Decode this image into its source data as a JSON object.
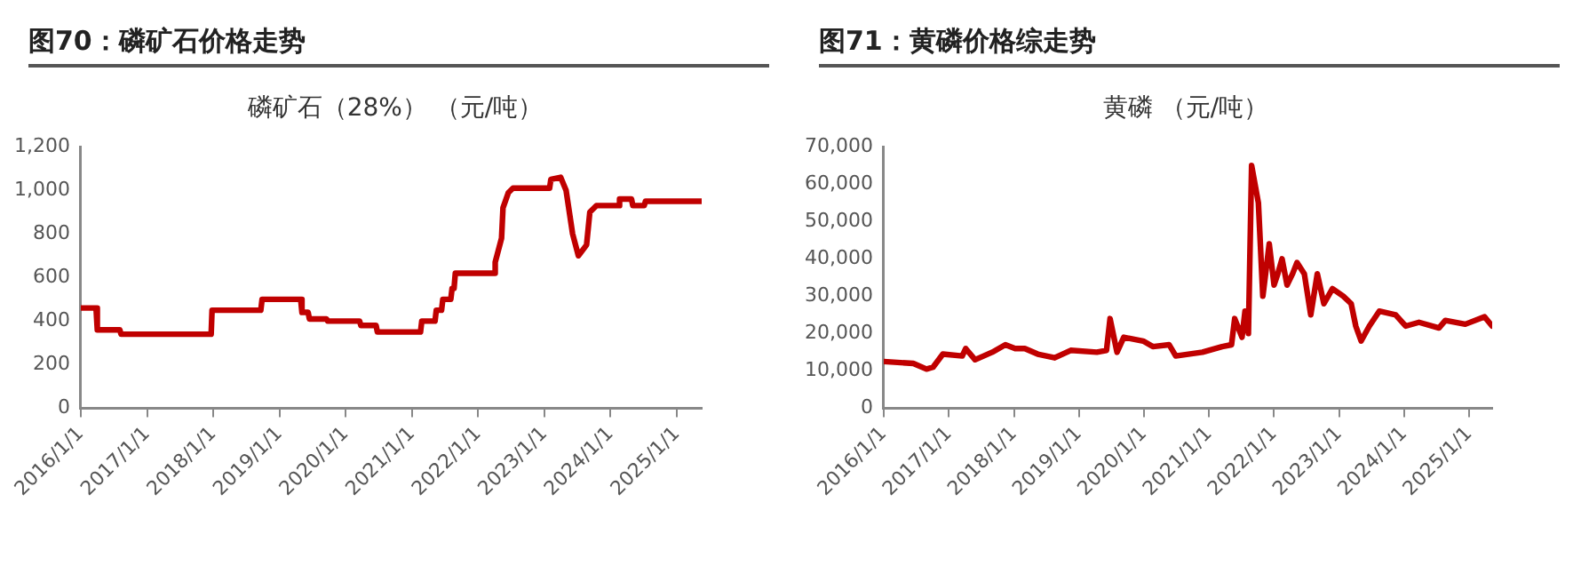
{
  "chart_data": [
    {
      "type": "line",
      "title": "图70：磷矿石价格走势",
      "subtitle": "磷矿石（28%） （元/吨）",
      "legend": false,
      "grid": false,
      "marker": "none",
      "line_style": "solid",
      "xlim": [
        "2016-01-01",
        "2025-05-18"
      ],
      "xticks": [
        {
          "value": "2016-01-01",
          "label": "2016/1/1"
        },
        {
          "value": "2017-01-01",
          "label": "2017/1/1"
        },
        {
          "value": "2018-01-01",
          "label": "2018/1/1"
        },
        {
          "value": "2019-01-01",
          "label": "2019/1/1"
        },
        {
          "value": "2020-01-01",
          "label": "2020/1/1"
        },
        {
          "value": "2021-01-01",
          "label": "2021/1/1"
        },
        {
          "value": "2022-01-01",
          "label": "2022/1/1"
        },
        {
          "value": "2023-01-01",
          "label": "2023/1/1"
        },
        {
          "value": "2024-01-01",
          "label": "2024/1/1"
        },
        {
          "value": "2025-01-01",
          "label": "2025/1/1"
        }
      ],
      "ylim": [
        0,
        1200
      ],
      "yticks": [
        0,
        {
          "value": 200,
          "label": "200"
        },
        {
          "value": 400,
          "label": "400"
        },
        {
          "value": 600,
          "label": "600"
        },
        {
          "value": 800,
          "label": "800"
        },
        {
          "value": 1000,
          "label": "1,000"
        },
        {
          "value": 1200,
          "label": "1,200"
        }
      ],
      "series": [
        {
          "color": "#c00000",
          "x": [
            "2016-01-01",
            "2016-03-25",
            "2016-04-01",
            "2016-08-03",
            "2016-08-10",
            "2017-12-20",
            "2017-12-25",
            "2018-09-20",
            "2018-09-27",
            "2019-04-28",
            "2019-05-05",
            "2019-06-08",
            "2019-06-15",
            "2019-09-17",
            "2019-09-24",
            "2020-03-18",
            "2020-03-25",
            "2020-06-17",
            "2020-06-24",
            "2021-02-17",
            "2021-02-24",
            "2021-05-08",
            "2021-05-15",
            "2021-06-13",
            "2021-06-20",
            "2021-08-03",
            "2021-08-10",
            "2021-08-21",
            "2021-08-28",
            "2022-03-29",
            "2022-04-05",
            "2022-05-10",
            "2022-05-18",
            "2022-06-17",
            "2022-07-12",
            "2023-01-30",
            "2023-02-06",
            "2023-04-01",
            "2023-05-01",
            "2023-06-06",
            "2023-07-08",
            "2023-08-22",
            "2023-09-09",
            "2023-10-15",
            "2024-02-13",
            "2024-02-20",
            "2024-04-26",
            "2024-05-03",
            "2024-07-05",
            "2024-07-12",
            "2025-05-18"
          ],
          "values": [
            460,
            460,
            360,
            360,
            340,
            340,
            450,
            450,
            500,
            500,
            440,
            440,
            410,
            410,
            400,
            400,
            380,
            380,
            350,
            350,
            400,
            400,
            450,
            450,
            500,
            500,
            550,
            550,
            620,
            620,
            670,
            780,
            920,
            990,
            1010,
            1010,
            1050,
            1060,
            1000,
            800,
            700,
            750,
            900,
            930,
            930,
            960,
            960,
            930,
            930,
            950,
            950
          ]
        }
      ]
    },
    {
      "type": "line",
      "title": "图71：黄磷价格综走势",
      "subtitle": "黄磷 （元/吨）",
      "legend": false,
      "grid": false,
      "marker": "none",
      "line_style": "solid",
      "xlim": [
        "2016-01-01",
        "2025-05-10"
      ],
      "xticks": [
        {
          "value": "2016-01-01",
          "label": "2016/1/1"
        },
        {
          "value": "2017-01-01",
          "label": "2017/1/1"
        },
        {
          "value": "2018-01-01",
          "label": "2018/1/1"
        },
        {
          "value": "2019-01-01",
          "label": "2019/1/1"
        },
        {
          "value": "2020-01-01",
          "label": "2020/1/1"
        },
        {
          "value": "2021-01-01",
          "label": "2021/1/1"
        },
        {
          "value": "2022-01-01",
          "label": "2022/1/1"
        },
        {
          "value": "2023-01-01",
          "label": "2023/1/1"
        },
        {
          "value": "2024-01-01",
          "label": "2024/1/1"
        },
        {
          "value": "2025-01-01",
          "label": "2025/1/1"
        }
      ],
      "ylim": [
        0,
        70000
      ],
      "yticks": [
        0,
        {
          "value": 10000,
          "label": "10,000"
        },
        {
          "value": 20000,
          "label": "20,000"
        },
        {
          "value": 30000,
          "label": "30,000"
        },
        {
          "value": 40000,
          "label": "40,000"
        },
        {
          "value": 50000,
          "label": "50,000"
        },
        {
          "value": 60000,
          "label": "60,000"
        },
        {
          "value": 70000,
          "label": "70,000"
        }
      ],
      "series": [
        {
          "color": "#c00000",
          "x": [
            "2016-01-01",
            "2016-06-15",
            "2016-08-28",
            "2016-10-04",
            "2016-11-28",
            "2017-03-17",
            "2017-04-05",
            "2017-05-28",
            "2017-09-01",
            "2017-11-14",
            "2018-01-08",
            "2018-03-03",
            "2018-05-15",
            "2018-08-18",
            "2018-11-16",
            "2019-04-12",
            "2019-06-05",
            "2019-06-25",
            "2019-08-03",
            "2019-09-10",
            "2019-12-28",
            "2020-02-20",
            "2020-05-22",
            "2020-06-28",
            "2020-11-25",
            "2021-03-15",
            "2021-05-07",
            "2021-05-25",
            "2021-07-05",
            "2021-07-22",
            "2021-08-10",
            "2021-08-28",
            "2021-10-05",
            "2021-10-30",
            "2021-12-05",
            "2022-01-01",
            "2022-01-22",
            "2022-02-15",
            "2022-03-15",
            "2022-04-15",
            "2022-05-10",
            "2022-06-20",
            "2022-07-26",
            "2022-09-01",
            "2022-10-08",
            "2022-11-25",
            "2023-01-25",
            "2023-03-10",
            "2023-04-05",
            "2023-05-05",
            "2023-06-20",
            "2023-08-15",
            "2023-11-15",
            "2024-01-10",
            "2024-03-25",
            "2024-07-15",
            "2024-08-20",
            "2024-12-10",
            "2025-03-28",
            "2025-05-10"
          ],
          "values": [
            12500,
            12000,
            10500,
            11000,
            14500,
            14000,
            16000,
            13000,
            15000,
            17000,
            16000,
            16000,
            14500,
            13500,
            15500,
            15000,
            15500,
            24000,
            15000,
            19000,
            18000,
            16500,
            17000,
            14000,
            15000,
            16500,
            17000,
            24000,
            19000,
            26000,
            20000,
            65000,
            55000,
            30000,
            44000,
            33000,
            36000,
            40000,
            33000,
            36000,
            39000,
            36000,
            25000,
            36000,
            28000,
            32000,
            30000,
            28000,
            22000,
            18000,
            22000,
            26000,
            25000,
            22000,
            23000,
            21500,
            23500,
            22500,
            24500,
            22000
          ]
        }
      ]
    }
  ]
}
